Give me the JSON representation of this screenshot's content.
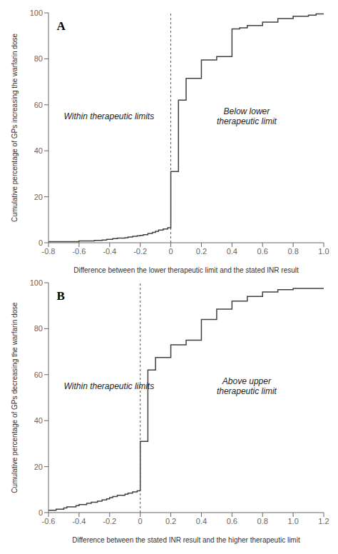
{
  "chart_data": [
    {
      "type": "step",
      "title": "A",
      "x_label": "Difference between the lower therapeutic limit and the stated INR result",
      "y_label": "Cumulative percentage of GPs increasing the warfarin dose",
      "xlim": [
        -0.8,
        1.0
      ],
      "ylim": [
        0,
        100
      ],
      "xticks": [
        -0.8,
        -0.6,
        -0.4,
        -0.2,
        0,
        0.2,
        0.4,
        0.6,
        0.8,
        {
          "value": 1.0,
          "label": "1.0"
        }
      ],
      "yticks": [
        0,
        20,
        40,
        60,
        80,
        100
      ],
      "vline": 0,
      "annotations": [
        "Within therapeutic limits",
        "Below lower\ntherapeutic limit"
      ],
      "color": "#404040",
      "grid": false,
      "x": [
        -0.8,
        -0.75,
        -0.7,
        -0.65,
        -0.6,
        -0.55,
        -0.5,
        -0.48,
        -0.45,
        -0.42,
        -0.4,
        -0.38,
        -0.35,
        -0.32,
        -0.3,
        -0.28,
        -0.25,
        -0.22,
        -0.2,
        -0.18,
        -0.15,
        -0.12,
        -0.1,
        -0.08,
        -0.05,
        -0.02,
        0.0,
        0.05,
        0.1,
        0.15,
        0.2,
        0.25,
        0.3,
        0.35,
        0.4,
        0.45,
        0.5,
        0.55,
        0.6,
        0.65,
        0.7,
        0.75,
        0.8,
        0.85,
        0.9,
        0.95,
        1.0
      ],
      "values": [
        0.5,
        0.5,
        0.5,
        0.5,
        0.8,
        0.8,
        1.0,
        1.0,
        1.2,
        1.5,
        1.5,
        1.8,
        2.0,
        2.0,
        2.2,
        2.5,
        2.8,
        3.0,
        3.2,
        3.5,
        4.0,
        4.5,
        5.0,
        5.5,
        6.0,
        6.5,
        31.0,
        62.0,
        71.5,
        71.5,
        79.5,
        79.5,
        81.0,
        81.0,
        93.0,
        93.5,
        94.5,
        94.5,
        96.0,
        96.0,
        97.5,
        97.5,
        98.5,
        98.5,
        99.0,
        99.5,
        99.5
      ]
    },
    {
      "type": "step",
      "title": "B",
      "x_label": "Difference between the stated INR result and the higher therapeutic limit",
      "y_label": "Cumulative percentage of GPs decreasing the warfarin dose",
      "xlim": [
        -0.6,
        1.2
      ],
      "ylim": [
        0,
        100
      ],
      "xticks": [
        -0.6,
        -0.4,
        -0.2,
        0,
        0.2,
        0.4,
        0.6,
        0.8,
        {
          "value": 1.0,
          "label": "1.0"
        },
        1.2
      ],
      "yticks": [
        0,
        20,
        40,
        60,
        80,
        100
      ],
      "vline": 0,
      "annotations": [
        "Within therapeutic limits",
        "Above upper\ntherapeutic limit"
      ],
      "color": "#404040",
      "grid": false,
      "x": [
        -0.6,
        -0.55,
        -0.5,
        -0.48,
        -0.45,
        -0.42,
        -0.4,
        -0.38,
        -0.35,
        -0.32,
        -0.3,
        -0.28,
        -0.25,
        -0.22,
        -0.2,
        -0.18,
        -0.15,
        -0.12,
        -0.1,
        -0.08,
        -0.05,
        -0.02,
        0.0,
        0.05,
        0.1,
        0.15,
        0.2,
        0.25,
        0.3,
        0.35,
        0.4,
        0.45,
        0.5,
        0.55,
        0.6,
        0.65,
        0.7,
        0.75,
        0.8,
        0.85,
        0.9,
        0.95,
        1.0,
        1.05,
        1.1,
        1.15,
        1.2
      ],
      "values": [
        1.0,
        1.5,
        2.0,
        2.5,
        2.5,
        3.0,
        3.5,
        3.5,
        4.0,
        4.5,
        4.5,
        5.0,
        5.5,
        6.0,
        6.5,
        7.0,
        7.5,
        7.5,
        8.0,
        8.5,
        9.0,
        9.5,
        31.0,
        62.0,
        67.5,
        67.5,
        73.0,
        73.0,
        75.0,
        75.0,
        84.0,
        84.0,
        88.5,
        88.5,
        92.0,
        92.0,
        94.0,
        94.0,
        96.0,
        96.0,
        97.0,
        97.0,
        97.5,
        97.5,
        97.5,
        97.5,
        97.5
      ]
    }
  ]
}
